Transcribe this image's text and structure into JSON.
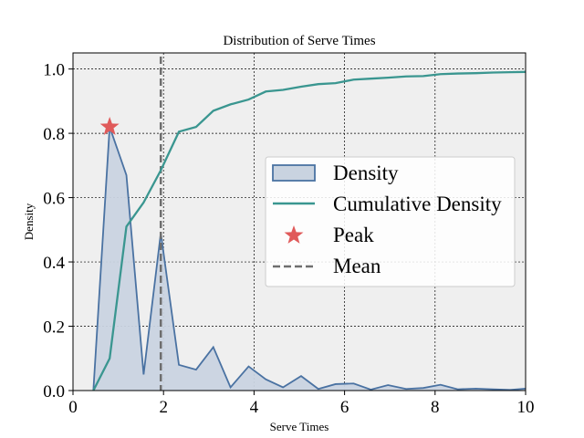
{
  "chart_data": {
    "type": "area",
    "title": "Distribution of Serve Times",
    "xlabel": "Serve Times",
    "ylabel": "Density",
    "xlim": [
      0,
      10
    ],
    "ylim": [
      0,
      1.05
    ],
    "grid": true,
    "legend_position": "center-right",
    "xticks": [
      0,
      2,
      4,
      6,
      8,
      10
    ],
    "yticks": [
      0.0,
      0.2,
      0.4,
      0.6,
      0.8,
      1.0
    ],
    "xtick_labels": [
      "0",
      "2",
      "4",
      "6",
      "8",
      "10"
    ],
    "ytick_labels": [
      "0.0",
      "0.2",
      "0.4",
      "0.6",
      "0.8",
      "1.0"
    ],
    "series": [
      {
        "name": "Density",
        "kind": "area",
        "color": "#4a72a2",
        "fill": "#c9d3e0",
        "x": [
          0.45,
          0.81,
          1.18,
          1.56,
          1.94,
          2.34,
          2.72,
          3.1,
          3.48,
          3.88,
          4.26,
          4.64,
          5.04,
          5.42,
          5.8,
          6.2,
          6.58,
          6.96,
          7.36,
          7.74,
          8.12,
          8.5,
          8.9,
          9.28,
          9.66,
          10.0
        ],
        "y": [
          0.0,
          0.82,
          0.67,
          0.05,
          0.49,
          0.08,
          0.065,
          0.135,
          0.01,
          0.075,
          0.035,
          0.01,
          0.045,
          0.005,
          0.02,
          0.022,
          0.003,
          0.017,
          0.005,
          0.008,
          0.018,
          0.004,
          0.006,
          0.004,
          0.002,
          0.006
        ]
      },
      {
        "name": "Cumulative Density",
        "kind": "line",
        "color": "#3a9690",
        "x": [
          0.45,
          0.81,
          1.18,
          1.56,
          1.94,
          2.34,
          2.72,
          3.1,
          3.48,
          3.88,
          4.26,
          4.64,
          5.04,
          5.42,
          5.8,
          6.2,
          6.58,
          6.96,
          7.36,
          7.74,
          8.12,
          8.5,
          8.9,
          9.28,
          9.66,
          10.0
        ],
        "y": [
          0.0,
          0.1,
          0.51,
          0.585,
          0.685,
          0.805,
          0.82,
          0.87,
          0.89,
          0.905,
          0.93,
          0.935,
          0.945,
          0.953,
          0.956,
          0.967,
          0.97,
          0.973,
          0.977,
          0.978,
          0.984,
          0.986,
          0.987,
          0.989,
          0.99,
          0.991
        ]
      }
    ],
    "peak": {
      "name": "Peak",
      "x": 0.81,
      "y": 0.82,
      "color": "#e05a5a"
    },
    "mean": {
      "name": "Mean",
      "x": 1.94,
      "color": "#6e6e6e"
    },
    "legend": [
      "Density",
      "Cumulative Density",
      "Peak",
      "Mean"
    ]
  }
}
